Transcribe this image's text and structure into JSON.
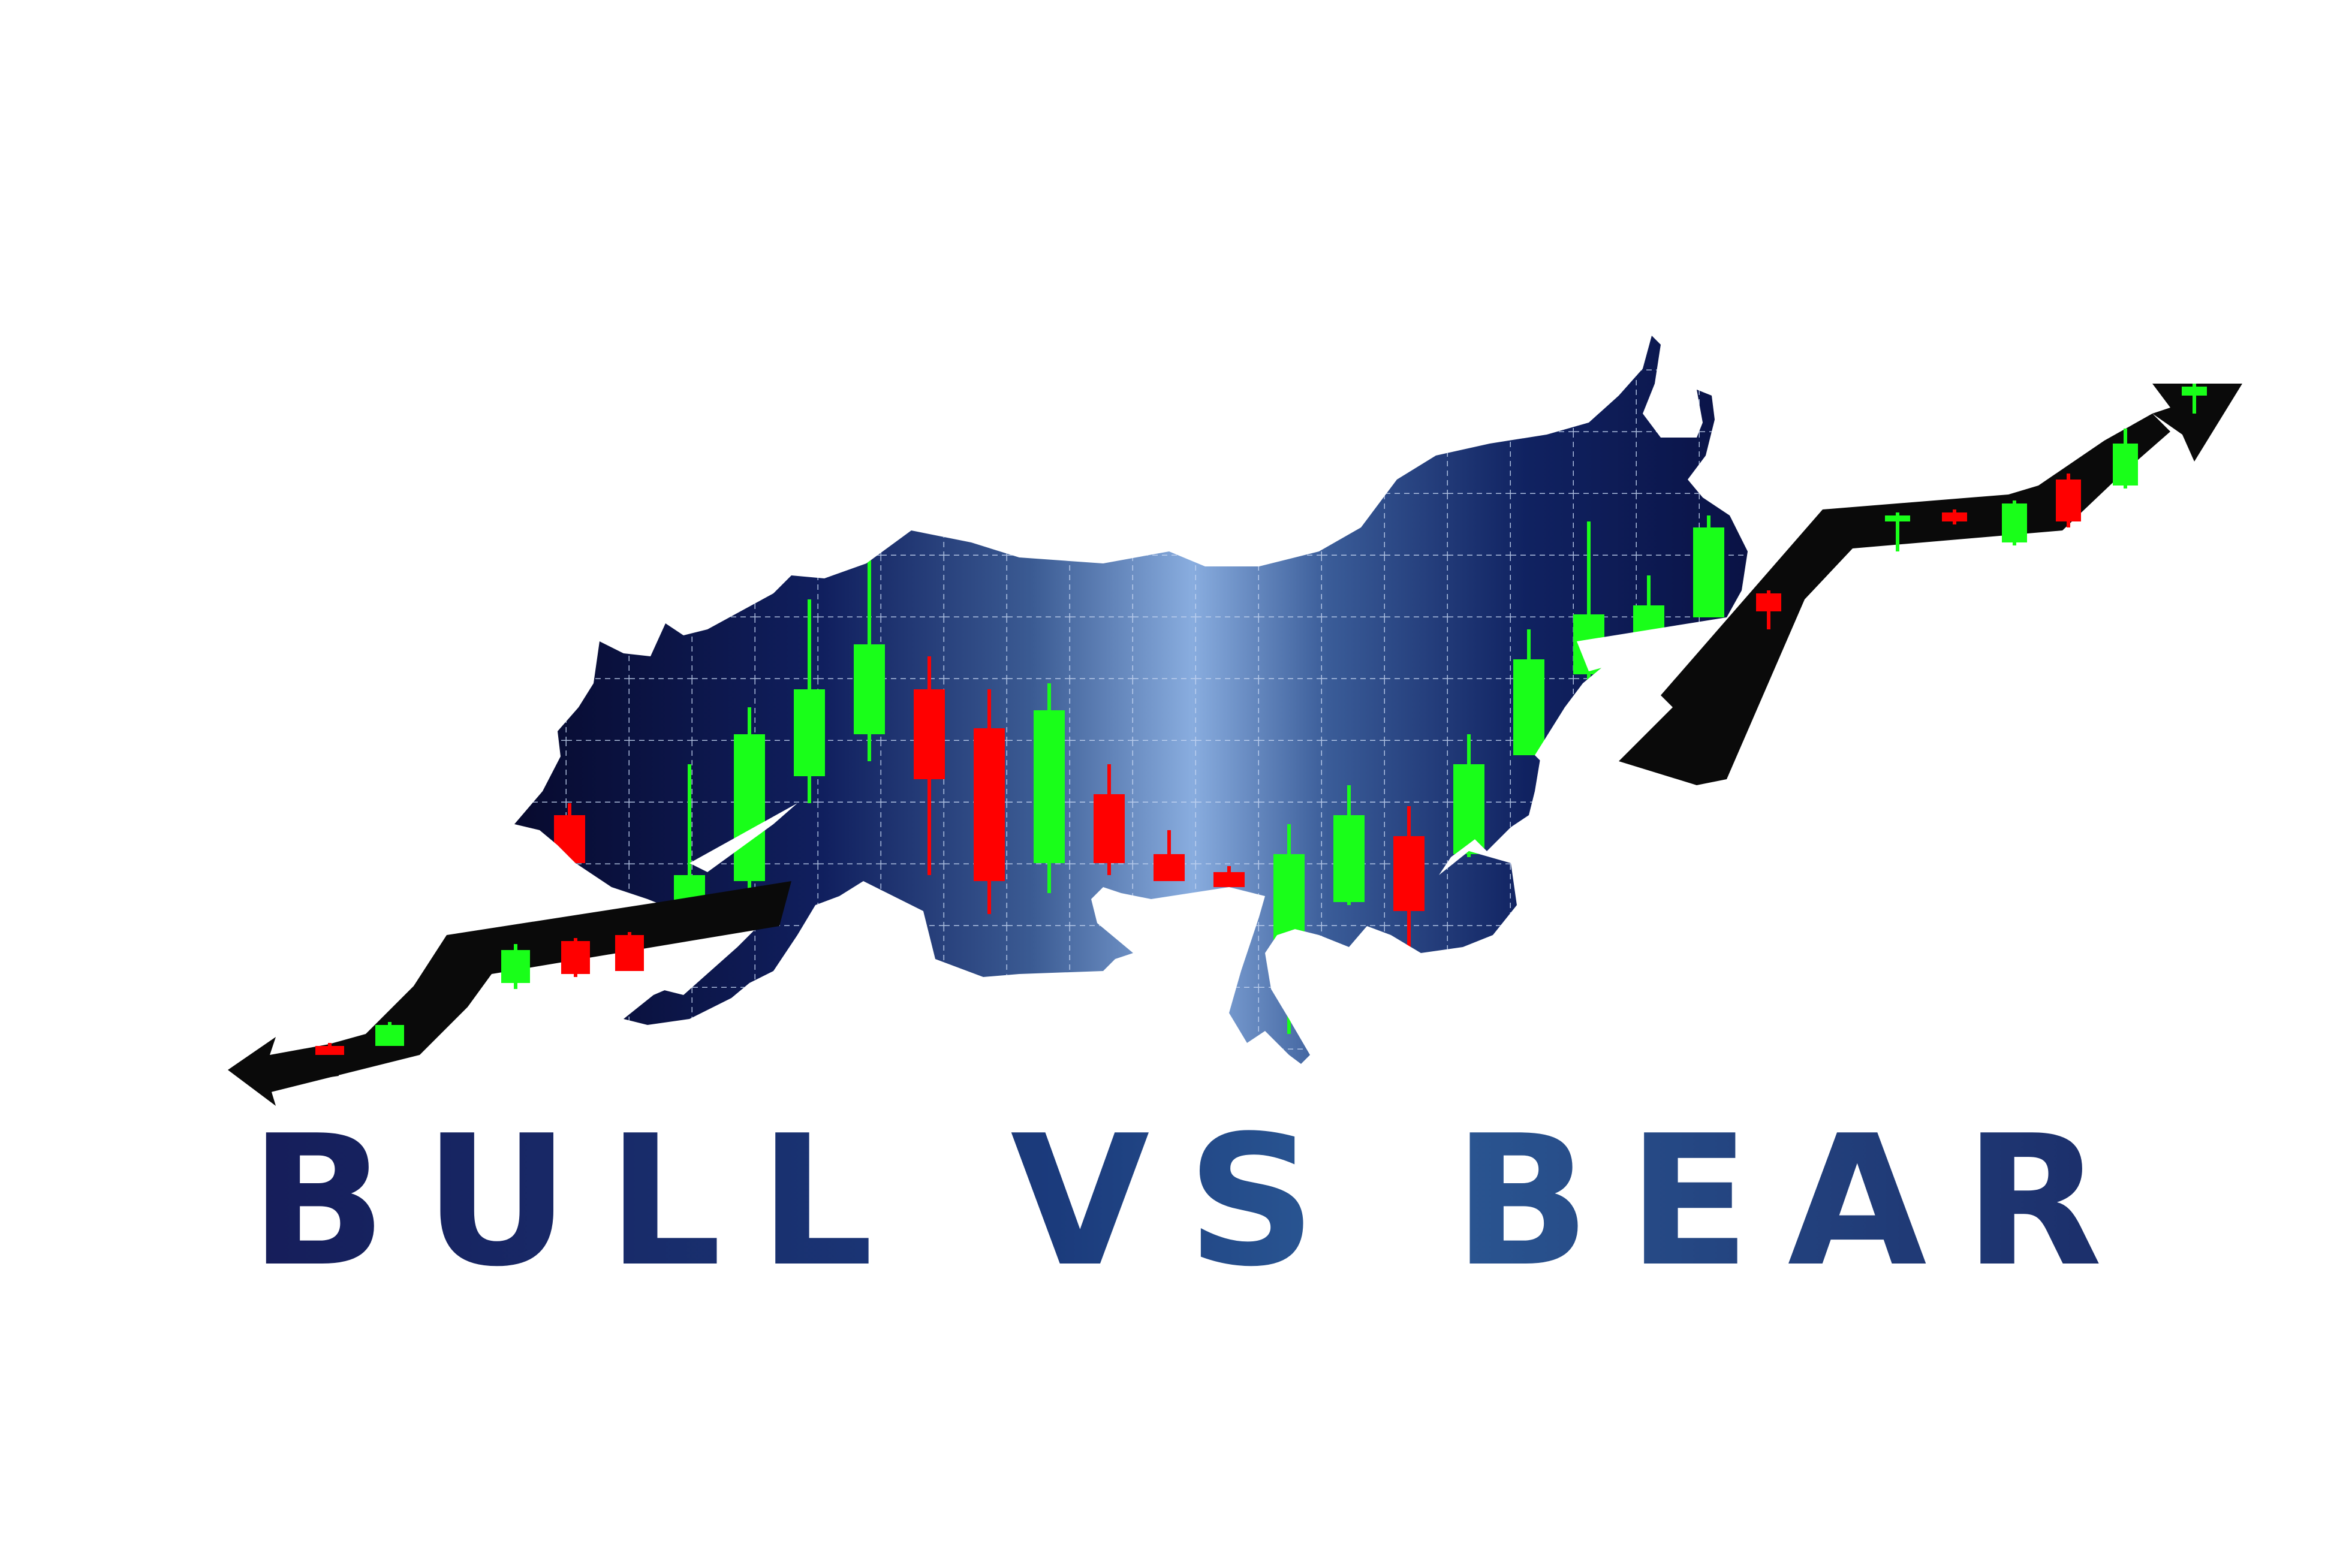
{
  "headline": "BULL VS BEAR",
  "colors": {
    "navy": "#0b0c44",
    "deep_blue": "#0f2a6b",
    "light_blue": "#8fb0e8",
    "candle_up": "#19ff19",
    "candle_down": "#ff0000",
    "arrow": "#0a0a0a",
    "background": "#ffffff"
  },
  "icons": [
    "bear-silhouette",
    "bull-silhouette",
    "up-arrow-icon",
    "down-arrow-icon"
  ]
}
